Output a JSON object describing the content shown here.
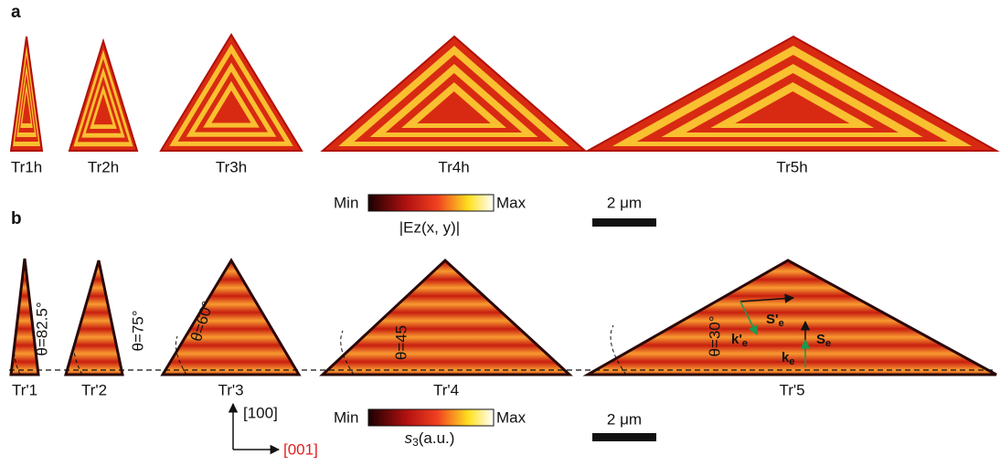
{
  "panels": [
    {
      "label": "a",
      "triangles": [
        "Tr1h",
        "Tr2h",
        "Tr3h",
        "Tr4h",
        "Tr5h"
      ],
      "colorbar": {
        "min": "Min",
        "max": "Max",
        "label": "|Ez(x, y)|"
      },
      "scale_bar": "2 μm"
    },
    {
      "label": "b",
      "triangles": [
        "Tr'1",
        "Tr'2",
        "Tr'3",
        "Tr'4",
        "Tr'5"
      ],
      "angles": [
        "θ=82.5°",
        "θ=75°",
        "θ=60°",
        "θ=45",
        "θ=30°"
      ],
      "colorbar": {
        "min": "Min",
        "max": "Max",
        "label": {
          "main": "s",
          "sub": "3",
          "rest": "(a.u.)"
        }
      },
      "scale_bar": "2 μm",
      "axes": {
        "vertical": "[100]",
        "horizontal": "[001]"
      },
      "vectors": [
        {
          "main": "S'",
          "sub": "e"
        },
        {
          "main": "k'",
          "sub": "e"
        },
        {
          "main": "S",
          "sub": "e"
        },
        {
          "main": "k",
          "sub": "e"
        }
      ]
    }
  ]
}
